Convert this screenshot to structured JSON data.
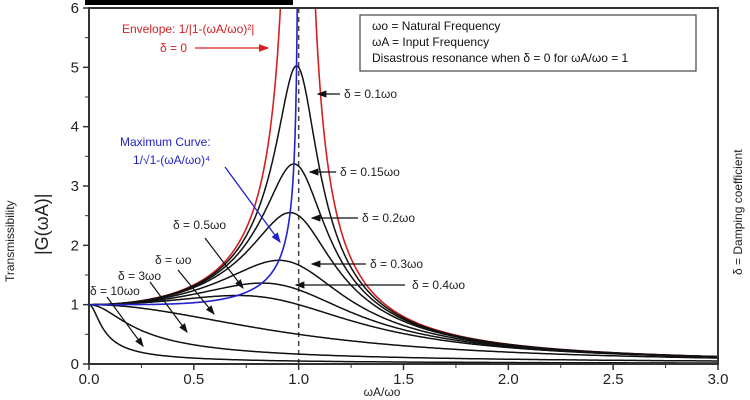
{
  "chart_data": {
    "type": "line",
    "xlabel": "ωA/ωo",
    "ylabel_line1": "Transmissibility",
    "ylabel_line2": "|G(ωA)|",
    "right_label": "δ = Damping coefficient",
    "xlim": [
      0,
      3.0
    ],
    "ylim": [
      0,
      6
    ],
    "xticks": [
      "0.0",
      "0.5",
      "1.0",
      "1.5",
      "2.0",
      "2.5",
      "3.0"
    ],
    "yticks": [
      "0",
      "1",
      "2",
      "3",
      "4",
      "5",
      "6"
    ],
    "grid": false,
    "resonance_line_x": 1.0,
    "envelope": {
      "label": "Envelope: 1/|1-(ωA/ωo)²|",
      "sublabel": "δ = 0",
      "color": "#d42020"
    },
    "maximum_curve": {
      "label": "Maximum Curve:",
      "formula": "1/√1-(ωA/ωo)⁴",
      "color": "#2222cc"
    },
    "series": [
      {
        "name": "δ = 0.1ωo",
        "delta": 0.1
      },
      {
        "name": "δ = 0.15ωo",
        "delta": 0.15
      },
      {
        "name": "δ = 0.2ωo",
        "delta": 0.2
      },
      {
        "name": "δ = 0.3ωo",
        "delta": 0.3
      },
      {
        "name": "δ = 0.4ωo",
        "delta": 0.4
      },
      {
        "name": "δ = 0.5ωo",
        "delta": 0.5
      },
      {
        "name": "δ = ωo",
        "delta": 1
      },
      {
        "name": "δ = 3ωo",
        "delta": 3
      },
      {
        "name": "δ = 10ωo",
        "delta": 10
      }
    ],
    "legend_box": [
      "ωo = Natural Frequency",
      "ωA = Input Frequency",
      "Disastrous resonance when δ = 0 for ωA/ωo = 1"
    ],
    "legend_placement": "top-right"
  }
}
